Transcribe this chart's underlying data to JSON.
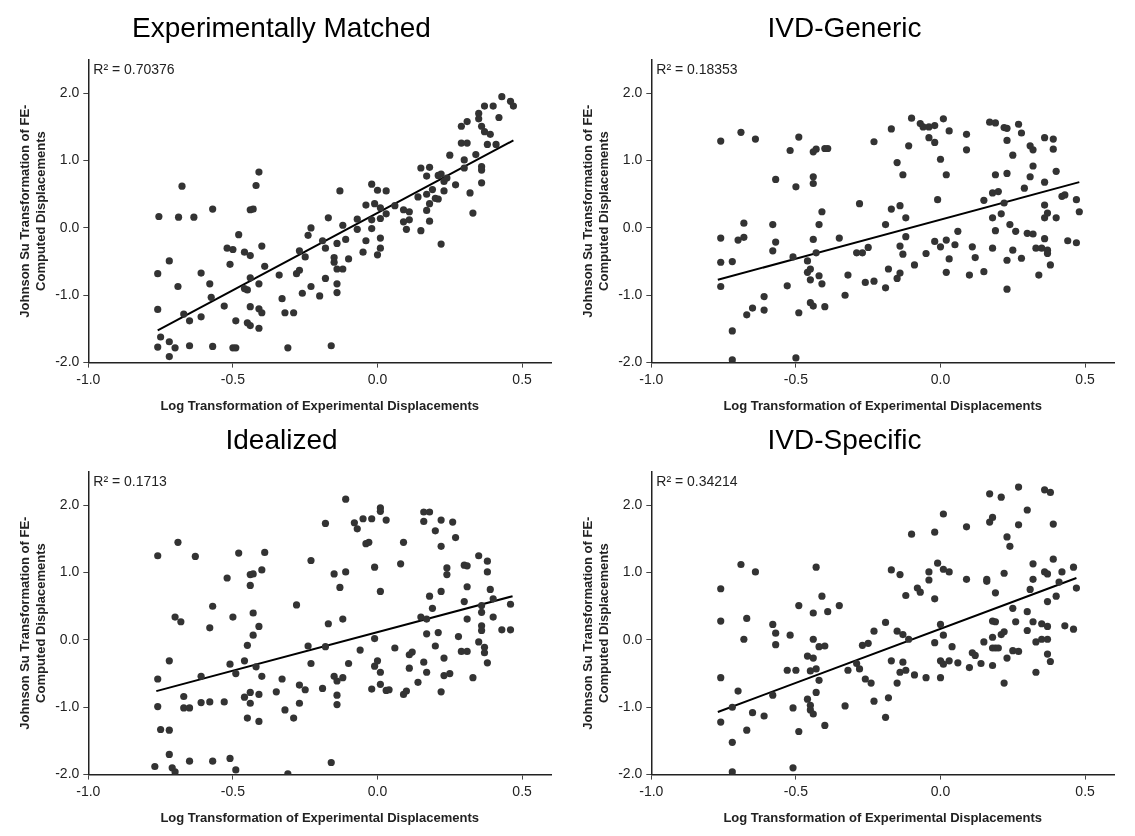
{
  "chart_data": [
    {
      "type": "scatter",
      "title": "Experimentally Matched",
      "xlabel": "Log Transformation of Experimental Displacements",
      "ylabel": "Johnson Su Transformation of FE-Computed Displacements",
      "annotations": [
        "R² = 0.70376"
      ],
      "xlim": [
        -1,
        0.6
      ],
      "xticks": [
        {
          "value": -1,
          "label": "-1.0"
        },
        {
          "value": -0.5,
          "label": "-0.5"
        },
        {
          "value": 0,
          "label": "0.0"
        },
        {
          "value": 0.5,
          "label": "0.5"
        }
      ],
      "ylim": [
        -2,
        2.5
      ],
      "yticks": [
        {
          "value": -2,
          "label": "-2.0"
        },
        {
          "value": -1,
          "label": "-1.0"
        },
        {
          "value": 0,
          "label": "0.0"
        },
        {
          "value": 1,
          "label": "1.0"
        },
        {
          "value": 2,
          "label": "2.0"
        }
      ],
      "series": [
        {
          "marker": "circle",
          "color": "#333333",
          "x": [
            -0.756,
            -0.688,
            -0.635,
            -0.676,
            -0.57,
            -0.72,
            -0.76,
            -0.69,
            -0.61,
            -0.58,
            -0.575,
            -0.76,
            -0.75,
            -0.76,
            -0.72,
            -0.72,
            -0.7,
            -0.65,
            -0.65,
            -0.61,
            -0.67,
            -0.57,
            -0.5,
            -0.49,
            -0.53,
            -0.49,
            -0.44,
            -0.45,
            -0.41,
            -0.44,
            -0.41,
            -0.4,
            -0.45,
            -0.46,
            -0.44,
            -0.41,
            -0.39,
            -0.51,
            -0.52,
            -0.5,
            -0.46,
            -0.44,
            -0.4,
            -0.48,
            -0.44,
            -0.43,
            -0.42,
            -0.41,
            -0.34,
            -0.33,
            -0.32,
            -0.29,
            -0.31,
            -0.16,
            -0.28,
            -0.27,
            -0.26,
            -0.23,
            -0.2,
            -0.18,
            -0.14,
            -0.14,
            -0.27,
            -0.25,
            -0.24,
            -0.23,
            -0.19,
            -0.18,
            -0.17,
            -0.15,
            -0.15,
            -0.14,
            -0.12,
            -0.14,
            -0.11,
            -0.1,
            -0.12,
            -0.13,
            -0.07,
            -0.07,
            -0.05,
            -0.04,
            -0.04,
            -0.02,
            -0.02,
            -0.02,
            0.0,
            0.03,
            -0.01,
            0.01,
            0.03,
            0.01,
            0.01,
            0.01,
            0.0,
            0.06,
            0.09,
            0.11,
            0.11,
            0.09,
            0.1,
            0.15,
            0.14,
            0.17,
            0.17,
            0.18,
            0.18,
            0.2,
            0.21,
            0.22,
            0.15,
            0.18,
            0.17,
            0.19,
            0.21,
            0.22,
            0.23,
            0.24,
            0.23,
            0.27,
            0.25,
            0.29,
            0.31,
            0.3,
            0.3,
            0.32,
            0.33,
            0.34,
            0.36,
            0.36,
            0.36,
            0.38,
            0.41,
            0.29,
            0.31,
            0.35,
            0.36,
            0.37,
            0.39,
            0.35,
            0.37,
            0.4,
            0.42,
            0.43,
            0.46,
            0.47
          ],
          "values": [
            0.17,
            0.16,
            0.16,
            0.62,
            0.28,
            -0.49,
            -0.68,
            -0.87,
            -0.67,
            -0.83,
            -1.03,
            -1.21,
            -1.62,
            -1.77,
            -1.69,
            -1.91,
            -1.78,
            -1.75,
            -1.38,
            -1.32,
            -1.28,
            -1.76,
            -1.78,
            -1.78,
            -1.16,
            -1.38,
            -1.45,
            -1.41,
            -1.49,
            -1.17,
            -1.2,
            -1.26,
            -0.92,
            -0.9,
            -0.74,
            -0.83,
            -0.57,
            -0.54,
            -0.3,
            -0.32,
            -0.36,
            -0.41,
            -0.27,
            -0.1,
            0.27,
            0.28,
            0.63,
            0.83,
            -0.7,
            -1.05,
            -1.26,
            -1.26,
            -1.78,
            -1.75,
            -0.68,
            -0.63,
            -0.97,
            -0.87,
            -1.01,
            -0.75,
            -0.83,
            -0.96,
            -0.34,
            -0.43,
            -0.11,
            0.0,
            -0.19,
            -0.3,
            0.15,
            -0.44,
            -0.51,
            -0.61,
            -0.61,
            -0.23,
            -0.17,
            -0.46,
            0.04,
            0.55,
            -0.02,
            0.13,
            -0.36,
            -0.19,
            0.34,
            0.65,
            -0.01,
            0.12,
            0.56,
            0.55,
            0.36,
            0.3,
            0.21,
            0.14,
            -0.15,
            -0.3,
            -0.4,
            0.33,
            0.27,
            0.24,
            0.12,
            0.09,
            -0.02,
            -0.04,
            0.46,
            0.5,
            0.26,
            0.1,
            0.36,
            0.44,
            0.43,
            -0.24,
            0.89,
            0.9,
            0.77,
            0.57,
            0.78,
            0.8,
            0.69,
            0.74,
            0.55,
            0.64,
            1.08,
            1.26,
            1.26,
            1.01,
            0.89,
            0.52,
            0.22,
            1.09,
            0.91,
            0.86,
            0.67,
            1.24,
            1.24,
            1.51,
            1.58,
            1.62,
            1.51,
            1.43,
            1.39,
            1.7,
            1.81,
            1.81,
            1.64,
            1.95,
            1.88,
            1.81
          ]
        },
        {
          "type": "line",
          "marker": "none",
          "color": "#000000",
          "x": [
            -0.76,
            0.47
          ],
          "values": [
            -1.52,
            1.3
          ]
        }
      ]
    },
    {
      "type": "scatter",
      "title": "IVD-Generic",
      "xlabel": "Log Transformation of Experimental Displacements",
      "ylabel": "Johnson Su Transformation of FE-Computed Displacements",
      "annotations": [
        "R² = 0.18353"
      ],
      "xlim": [
        -1,
        0.6
      ],
      "xticks": [
        {
          "value": -1,
          "label": "-1.0"
        },
        {
          "value": -0.5,
          "label": "-0.5"
        },
        {
          "value": 0,
          "label": "0.0"
        },
        {
          "value": 0.5,
          "label": "0.5"
        }
      ],
      "ylim": [
        -2,
        2.5
      ],
      "yticks": [
        {
          "value": -2,
          "label": "-2.0"
        },
        {
          "value": -1,
          "label": "-1.0"
        },
        {
          "value": 0,
          "label": "0.0"
        },
        {
          "value": 1,
          "label": "1.0"
        },
        {
          "value": 2,
          "label": "2.0"
        }
      ],
      "series": [
        {
          "marker": "circle",
          "color": "#333333",
          "x": [
            -0.76,
            -0.69,
            -0.64,
            -0.49,
            -0.52,
            -0.44,
            -0.43,
            -0.4,
            -0.39,
            -0.57,
            -0.5,
            -0.44,
            -0.44,
            -0.76,
            -0.76,
            -0.72,
            -0.76,
            -0.7,
            -0.68,
            -0.68,
            -0.72,
            -0.72,
            -0.67,
            -0.65,
            -0.61,
            -0.61,
            -0.58,
            -0.57,
            -0.58,
            -0.53,
            -0.51,
            -0.5,
            -0.49,
            -0.46,
            -0.46,
            -0.45,
            -0.45,
            -0.42,
            -0.41,
            -0.45,
            -0.44,
            -0.4,
            -0.43,
            -0.44,
            -0.42,
            -0.41,
            -0.35,
            -0.33,
            -0.32,
            -0.29,
            -0.27,
            -0.28,
            -0.26,
            -0.25,
            -0.23,
            -0.23,
            -0.19,
            -0.19,
            -0.18,
            -0.17,
            -0.17,
            -0.15,
            -0.14,
            -0.14,
            -0.13,
            -0.14,
            -0.12,
            -0.12,
            -0.15,
            -0.13,
            -0.11,
            -0.1,
            -0.09,
            -0.07,
            -0.06,
            -0.04,
            -0.02,
            0.01,
            0.03,
            -0.04,
            -0.02,
            0.0,
            0.02,
            -0.01,
            -0.05,
            -0.02,
            0.0,
            0.02,
            0.02,
            0.03,
            0.05,
            0.06,
            0.09,
            0.09,
            0.1,
            0.11,
            0.12,
            0.15,
            0.15,
            0.17,
            0.19,
            0.22,
            0.23,
            0.27,
            0.28,
            0.23,
            0.25,
            0.19,
            0.23,
            0.18,
            0.2,
            0.22,
            0.18,
            0.19,
            0.18,
            0.21,
            0.24,
            0.23,
            0.23,
            0.25,
            0.28,
            0.26,
            0.29,
            0.3,
            0.32,
            0.31,
            0.32,
            0.31,
            0.32,
            0.36,
            0.39,
            0.39,
            0.36,
            0.4,
            0.36,
            0.37,
            0.36,
            0.4,
            0.33,
            0.35,
            0.36,
            0.37,
            0.37,
            0.34,
            0.38,
            0.42,
            0.43,
            0.47,
            0.48,
            0.44,
            0.47
          ],
          "values": [
            1.29,
            1.42,
            1.32,
            1.35,
            1.15,
            1.13,
            1.17,
            1.18,
            1.18,
            0.72,
            0.61,
            0.76,
            0.66,
            -0.15,
            -0.51,
            -0.5,
            -0.87,
            -0.18,
            -0.14,
            0.07,
            -1.53,
            -1.96,
            -1.29,
            -1.19,
            -1.22,
            -1.02,
            0.05,
            -0.21,
            -0.34,
            -0.86,
            -0.43,
            -1.93,
            -1.26,
            -0.49,
            -0.66,
            -0.61,
            -0.77,
            -0.71,
            -0.83,
            -1.11,
            -1.16,
            -1.17,
            -0.37,
            -0.17,
            0.05,
            0.24,
            -0.15,
            -1.0,
            -0.7,
            -0.37,
            -0.37,
            0.36,
            -0.81,
            -0.29,
            -0.79,
            1.28,
            -0.89,
            0.05,
            -0.61,
            0.28,
            1.47,
            -0.75,
            -0.67,
            -0.27,
            -0.39,
            0.33,
            0.15,
            -0.13,
            0.97,
            0.79,
            1.22,
            1.63,
            -0.55,
            1.55,
            1.5,
            1.5,
            1.52,
            1.62,
            1.44,
            1.34,
            1.27,
            1.02,
            0.79,
            0.42,
            -0.38,
            -0.2,
            -0.28,
            -0.18,
            -0.66,
            -0.46,
            -0.25,
            -0.05,
            1.39,
            1.16,
            -0.7,
            -0.28,
            -0.44,
            -0.65,
            0.41,
            1.57,
            1.56,
            1.49,
            1.48,
            1.54,
            1.41,
            1.3,
            1.08,
            0.79,
            0.81,
            0.52,
            0.54,
            0.37,
            0.15,
            -0.04,
            -0.3,
            0.21,
            0.05,
            -0.48,
            -0.91,
            -0.33,
            -0.45,
            -0.05,
            0.59,
            -0.08,
            -0.09,
            0.76,
            0.92,
            1.22,
            1.16,
            1.34,
            1.32,
            1.17,
            0.68,
            0.84,
            0.34,
            0.22,
            0.15,
            0.15,
            -0.3,
            -0.3,
            -0.16,
            -0.33,
            -0.38,
            -0.7,
            -0.55,
            0.47,
            0.49,
            0.42,
            0.24,
            -0.19,
            -0.22
          ]
        },
        {
          "type": "line",
          "marker": "none",
          "color": "#000000",
          "x": [
            -0.77,
            0.48
          ],
          "values": [
            -0.77,
            0.68
          ]
        }
      ]
    },
    {
      "type": "scatter",
      "title": "Idealized",
      "xlabel": "Log Transformation of Experimental Displacements",
      "ylabel": "Johnson Su Transformation of FE-Computed Displacements",
      "annotations": [
        "R² = 0.1713"
      ],
      "xlim": [
        -1,
        0.6
      ],
      "xticks": [
        {
          "value": -1,
          "label": "-1.0"
        },
        {
          "value": -0.5,
          "label": "-0.5"
        },
        {
          "value": 0,
          "label": "0.0"
        },
        {
          "value": 0.5,
          "label": "0.5"
        }
      ],
      "ylim": [
        -2,
        2.5
      ],
      "yticks": [
        {
          "value": -2,
          "label": "-2.0"
        },
        {
          "value": -1,
          "label": "-1.0"
        },
        {
          "value": 0,
          "label": "0.0"
        },
        {
          "value": 1,
          "label": "1.0"
        },
        {
          "value": 2,
          "label": "2.0"
        }
      ],
      "series": [
        {
          "marker": "circle",
          "color": "#333333",
          "x": [
            -0.76,
            -0.69,
            -0.63,
            -0.76,
            -0.76,
            -0.75,
            -0.77,
            -0.72,
            -0.72,
            -0.72,
            -0.71,
            -0.7,
            -0.7,
            -0.68,
            -0.67,
            -0.67,
            -0.65,
            -0.65,
            -0.61,
            -0.61,
            -0.58,
            -0.58,
            -0.57,
            -0.57,
            -0.53,
            -0.52,
            -0.51,
            -0.5,
            -0.51,
            -0.49,
            -0.48,
            -0.49,
            -0.46,
            -0.46,
            -0.45,
            -0.45,
            -0.44,
            -0.44,
            -0.44,
            -0.43,
            -0.44,
            -0.43,
            -0.43,
            -0.41,
            -0.42,
            -0.41,
            -0.41,
            -0.4,
            -0.39,
            -0.4,
            -0.35,
            -0.33,
            -0.32,
            -0.29,
            -0.31,
            -0.28,
            -0.27,
            -0.27,
            -0.25,
            -0.24,
            -0.23,
            -0.23,
            -0.19,
            -0.18,
            -0.18,
            -0.17,
            -0.15,
            -0.14,
            -0.14,
            -0.14,
            -0.16,
            -0.15,
            -0.13,
            -0.12,
            -0.12,
            -0.11,
            -0.11,
            -0.1,
            -0.08,
            -0.07,
            -0.05,
            -0.04,
            -0.03,
            -0.02,
            -0.06,
            -0.01,
            -0.01,
            -0.02,
            -0.01,
            0.0,
            0.01,
            0.01,
            0.01,
            0.01,
            0.01,
            0.03,
            0.03,
            0.04,
            0.06,
            0.09,
            0.08,
            0.09,
            0.1,
            0.11,
            0.11,
            0.12,
            0.14,
            0.15,
            0.16,
            0.16,
            0.16,
            0.18,
            0.17,
            0.17,
            0.17,
            0.18,
            0.19,
            0.2,
            0.21,
            0.2,
            0.22,
            0.22,
            0.22,
            0.22,
            0.23,
            0.24,
            0.24,
            0.23,
            0.26,
            0.27,
            0.25,
            0.28,
            0.29,
            0.3,
            0.3,
            0.31,
            0.31,
            0.31,
            0.33,
            0.31,
            0.35,
            0.35,
            0.36,
            0.36,
            0.36,
            0.36,
            0.37,
            0.37,
            0.38,
            0.38,
            0.38,
            0.39,
            0.4,
            0.4,
            0.43,
            0.46,
            0.46
          ],
          "values": [
            1.25,
            1.45,
            1.24,
            -0.58,
            -0.99,
            -1.33,
            -1.88,
            -0.31,
            -1.34,
            -1.7,
            -1.9,
            -1.96,
            0.34,
            0.27,
            -1.01,
            -0.84,
            -1.01,
            -1.8,
            -0.93,
            -0.54,
            -0.92,
            0.18,
            0.5,
            -1.8,
            -0.92,
            0.92,
            -0.36,
            0.34,
            -1.76,
            -1.93,
            1.29,
            -0.5,
            -0.31,
            -0.85,
            -0.08,
            -1.16,
            -0.78,
            -0.94,
            0.97,
            0.98,
            0.81,
            0.4,
            0.07,
            0.2,
            -0.4,
            -0.81,
            -1.21,
            1.04,
            1.3,
            -0.54,
            -0.77,
            -0.58,
            -1.04,
            -1.16,
            -1.99,
            0.52,
            -0.94,
            -0.67,
            -0.74,
            -0.09,
            -0.35,
            1.18,
            -0.72,
            -0.1,
            1.73,
            0.24,
            -0.54,
            -0.61,
            -0.82,
            -0.96,
            -1.82,
            0.98,
            0.78,
            -0.56,
            0.31,
            1.01,
            2.09,
            -0.35,
            1.74,
            1.65,
            1.8,
            1.43,
            1.45,
            1.8,
            -0.15,
            1.08,
            0.02,
            -0.73,
            -0.39,
            -0.31,
            -0.48,
            -0.66,
            1.96,
            1.91,
            0.72,
            1.78,
            -0.75,
            -0.74,
            -0.12,
            1.45,
            1.13,
            -0.81,
            -0.76,
            -0.22,
            -0.42,
            -0.18,
            -0.63,
            0.34,
            -0.33,
            1.76,
            1.9,
            1.9,
            0.31,
            0.09,
            -0.48,
            0.65,
            0.47,
            1.62,
            0.11,
            -0.09,
            -0.77,
            0.72,
            1.39,
            1.78,
            -0.27,
            0.97,
            1.07,
            -0.53,
            1.75,
            1.52,
            -0.5,
            0.05,
            -0.17,
            0.57,
            1.11,
            1.1,
            0.31,
            0.79,
            -0.56,
            -0.17,
            1.25,
            -0.03,
            0.21,
            0.51,
            0.41,
            0.14,
            -0.11,
            -0.19,
            -0.34,
            1.01,
            1.17,
            0.75,
            0.34,
            0.61,
            0.15,
            0.15,
            0.53
          ]
        },
        {
          "type": "line",
          "marker": "none",
          "color": "#000000",
          "x": [
            -0.765,
            0.467
          ],
          "values": [
            -0.76,
            0.65
          ]
        }
      ]
    },
    {
      "type": "scatter",
      "title": "IVD-Specific",
      "xlabel": "Log Transformation of Experimental Displacements",
      "ylabel": "Johnson Su Transformation of FE-Computed Displacements",
      "annotations": [
        "R² = 0.34214"
      ],
      "xlim": [
        -1,
        0.6
      ],
      "xticks": [
        {
          "value": -1,
          "label": "-1.0"
        },
        {
          "value": -0.5,
          "label": "-0.5"
        },
        {
          "value": 0,
          "label": "0.0"
        },
        {
          "value": 0.5,
          "label": "0.5"
        }
      ],
      "ylim": [
        -2,
        2.5
      ],
      "yticks": [
        {
          "value": -2,
          "label": "-2.0"
        },
        {
          "value": -1,
          "label": "-1.0"
        },
        {
          "value": 0,
          "label": "0.0"
        },
        {
          "value": 1,
          "label": "1.0"
        },
        {
          "value": 2,
          "label": "2.0"
        }
      ],
      "series": [
        {
          "marker": "circle",
          "color": "#333333",
          "x": [
            -0.76,
            -0.76,
            -0.76,
            -0.76,
            -0.72,
            -0.72,
            -0.72,
            -0.7,
            -0.69,
            -0.67,
            -0.68,
            -0.67,
            -0.65,
            -0.64,
            -0.61,
            -0.58,
            -0.58,
            -0.57,
            -0.57,
            -0.53,
            -0.52,
            -0.51,
            -0.51,
            -0.5,
            -0.49,
            -0.49,
            -0.46,
            -0.46,
            -0.45,
            -0.45,
            -0.45,
            -0.44,
            -0.44,
            -0.44,
            -0.43,
            -0.44,
            -0.43,
            -0.43,
            -0.42,
            -0.41,
            -0.42,
            -0.4,
            -0.4,
            -0.39,
            -0.35,
            -0.33,
            -0.32,
            -0.29,
            -0.28,
            -0.27,
            -0.26,
            -0.25,
            -0.24,
            -0.23,
            -0.23,
            -0.19,
            -0.19,
            -0.18,
            -0.17,
            -0.17,
            -0.15,
            -0.15,
            -0.14,
            -0.14,
            -0.13,
            -0.13,
            -0.12,
            -0.12,
            -0.11,
            -0.1,
            -0.09,
            -0.08,
            -0.07,
            -0.05,
            -0.04,
            -0.04,
            -0.02,
            -0.02,
            -0.02,
            -0.01,
            0.0,
            0.0,
            0.0,
            0.01,
            0.01,
            0.01,
            0.01,
            0.03,
            0.03,
            0.04,
            0.06,
            0.09,
            0.09,
            0.1,
            0.11,
            0.12,
            0.14,
            0.15,
            0.16,
            0.16,
            0.17,
            0.17,
            0.18,
            0.18,
            0.18,
            0.18,
            0.18,
            0.19,
            0.19,
            0.19,
            0.2,
            0.21,
            0.21,
            0.22,
            0.22,
            0.23,
            0.23,
            0.22,
            0.24,
            0.25,
            0.25,
            0.26,
            0.27,
            0.27,
            0.27,
            0.3,
            0.3,
            0.3,
            0.32,
            0.32,
            0.32,
            0.31,
            0.33,
            0.33,
            0.35,
            0.35,
            0.36,
            0.38,
            0.36,
            0.37,
            0.37,
            0.37,
            0.37,
            0.37,
            0.38,
            0.39,
            0.39,
            0.4,
            0.41,
            0.42,
            0.43,
            0.46,
            0.47,
            0.46
          ],
          "values": [
            0.76,
            0.28,
            -0.56,
            -1.22,
            -1.96,
            -1.52,
            -1.0,
            -0.76,
            1.12,
            0.32,
            0.01,
            -1.34,
            -1.08,
            1.01,
            -1.13,
            -0.82,
            0.23,
            0.1,
            -0.07,
            -0.45,
            0.07,
            -1.01,
            -1.9,
            -0.45,
            -1.36,
            0.51,
            -0.88,
            -0.24,
            -0.46,
            -0.97,
            -1.04,
            -1.1,
            0.01,
            0.4,
            1.08,
            -0.27,
            -0.43,
            -0.78,
            -0.6,
            0.65,
            -0.1,
            -0.09,
            -1.27,
            0.42,
            0.51,
            -0.98,
            -0.45,
            -0.35,
            -0.43,
            -0.08,
            -0.58,
            -0.05,
            -0.64,
            -0.91,
            0.13,
            -1.15,
            0.26,
            -0.86,
            1.04,
            -0.31,
            0.13,
            -0.64,
            0.97,
            -0.48,
            -0.33,
            0.08,
            0.66,
            -0.45,
            0.01,
            1.57,
            -0.52,
            0.77,
            0.71,
            -0.56,
            1.01,
            0.89,
            0.61,
            -0.04,
            1.6,
            1.14,
            -0.56,
            0.23,
            -0.31,
            -0.36,
            0.07,
            1.87,
            1.05,
            1.01,
            -0.31,
            -0.1,
            -0.34,
            0.9,
            1.68,
            -0.41,
            -0.19,
            -0.23,
            -0.35,
            -0.03,
            0.87,
            0.9,
            2.17,
            1.75,
            1.82,
            0.04,
            0.28,
            -0.38,
            -0.12,
            0.7,
            0.27,
            -0.12,
            -0.12,
            2.12,
            0.08,
            0.12,
            0.99,
            1.53,
            -0.27,
            -0.64,
            1.39,
            0.47,
            -0.16,
            0.27,
            2.27,
            1.71,
            -0.17,
            1.93,
            0.42,
            0.14,
            1.13,
            0.9,
            0.27,
            0.75,
            -0.03,
            -0.48,
            0.01,
            0.24,
            2.23,
            2.19,
            1.01,
            0.98,
            0.57,
            0.2,
            0.01,
            -0.21,
            -0.32,
            1.72,
            1.2,
            0.65,
            0.86,
            1.01,
            0.21,
            1.08,
            0.77,
            0.16
          ]
        },
        {
          "type": "line",
          "marker": "none",
          "color": "#000000",
          "x": [
            -0.77,
            0.47
          ],
          "values": [
            -1.07,
            0.92
          ]
        }
      ]
    }
  ]
}
